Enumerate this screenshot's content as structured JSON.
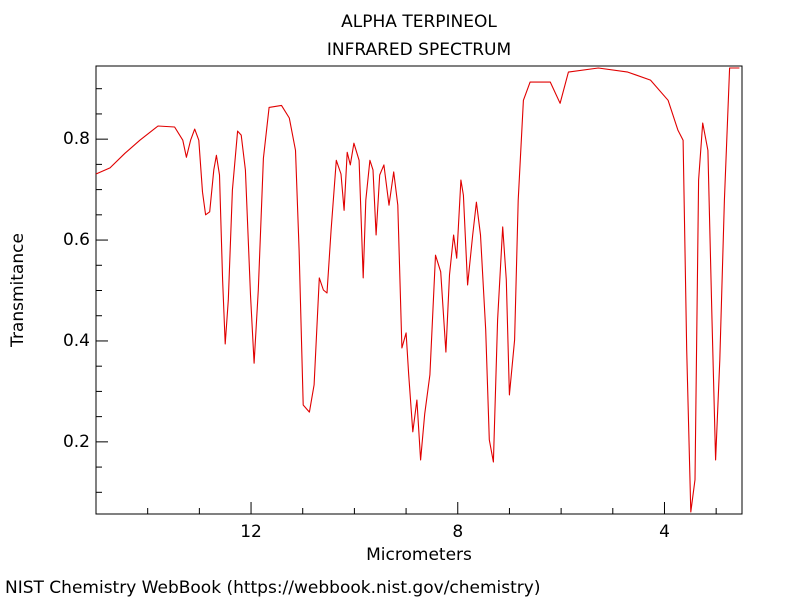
{
  "chart_data": {
    "type": "line",
    "title": "ALPHA TERPINEOL",
    "subtitle": "INFRARED SPECTRUM",
    "x_label": "Micrometers",
    "y_label": "Transmitance",
    "xlim": [
      15,
      2.5
    ],
    "ylim": [
      0.057,
      0.945
    ],
    "xticks": [
      12,
      8,
      4
    ],
    "yticks": [
      0.2,
      0.4,
      0.6,
      0.8
    ],
    "xminorticks": [
      14,
      13,
      11,
      10,
      9,
      7,
      6,
      5,
      3
    ],
    "yminorticks": [
      0.1,
      0.15,
      0.25,
      0.3,
      0.35,
      0.45,
      0.5,
      0.55,
      0.65,
      0.7,
      0.75,
      0.85,
      0.9
    ],
    "x": [
      15.0,
      14.73,
      14.44,
      14.15,
      13.8,
      13.48,
      13.32,
      13.25,
      13.17,
      13.09,
      13.01,
      12.94,
      12.88,
      12.8,
      12.72,
      12.67,
      12.61,
      12.55,
      12.5,
      12.44,
      12.36,
      12.26,
      12.19,
      12.11,
      12.01,
      11.94,
      11.86,
      11.76,
      11.65,
      11.41,
      11.26,
      11.14,
      11.07,
      10.99,
      10.87,
      10.78,
      10.68,
      10.6,
      10.53,
      10.45,
      10.35,
      10.26,
      10.2,
      10.14,
      10.08,
      10.01,
      9.91,
      9.83,
      9.78,
      9.7,
      9.64,
      9.58,
      9.51,
      9.43,
      9.33,
      9.24,
      9.16,
      9.08,
      9.0,
      8.95,
      8.87,
      8.79,
      8.72,
      8.64,
      8.54,
      8.43,
      8.33,
      8.23,
      8.16,
      8.08,
      8.02,
      7.94,
      7.89,
      7.81,
      7.71,
      7.64,
      7.56,
      7.46,
      7.39,
      7.31,
      7.23,
      7.13,
      7.06,
      7.0,
      6.9,
      6.83,
      6.73,
      6.6,
      6.21,
      6.02,
      5.86,
      5.28,
      4.71,
      4.27,
      3.93,
      3.74,
      3.64,
      3.57,
      3.49,
      3.41,
      3.34,
      3.26,
      3.16,
      3.08,
      3.01,
      2.93,
      2.84,
      2.74,
      2.55
    ],
    "series": [
      {
        "color": "#e00000",
        "values": [
          0.731,
          0.743,
          0.772,
          0.798,
          0.826,
          0.824,
          0.798,
          0.764,
          0.798,
          0.82,
          0.798,
          0.695,
          0.65,
          0.656,
          0.739,
          0.768,
          0.729,
          0.521,
          0.394,
          0.481,
          0.699,
          0.816,
          0.808,
          0.739,
          0.491,
          0.356,
          0.501,
          0.762,
          0.863,
          0.867,
          0.842,
          0.778,
          0.58,
          0.273,
          0.259,
          0.313,
          0.525,
          0.501,
          0.495,
          0.62,
          0.758,
          0.731,
          0.659,
          0.774,
          0.749,
          0.792,
          0.758,
          0.525,
          0.679,
          0.758,
          0.739,
          0.61,
          0.729,
          0.749,
          0.669,
          0.735,
          0.669,
          0.386,
          0.416,
          0.333,
          0.22,
          0.283,
          0.164,
          0.255,
          0.333,
          0.57,
          0.537,
          0.378,
          0.531,
          0.61,
          0.564,
          0.719,
          0.689,
          0.511,
          0.61,
          0.675,
          0.61,
          0.422,
          0.204,
          0.16,
          0.442,
          0.626,
          0.521,
          0.293,
          0.402,
          0.679,
          0.877,
          0.913,
          0.913,
          0.871,
          0.933,
          0.941,
          0.933,
          0.917,
          0.877,
          0.818,
          0.798,
          0.382,
          0.061,
          0.125,
          0.719,
          0.832,
          0.778,
          0.442,
          0.164,
          0.362,
          0.679,
          0.941,
          0.941
        ]
      }
    ],
    "footer": "NIST Chemistry WebBook (https://webbook.nist.gov/chemistry)"
  }
}
